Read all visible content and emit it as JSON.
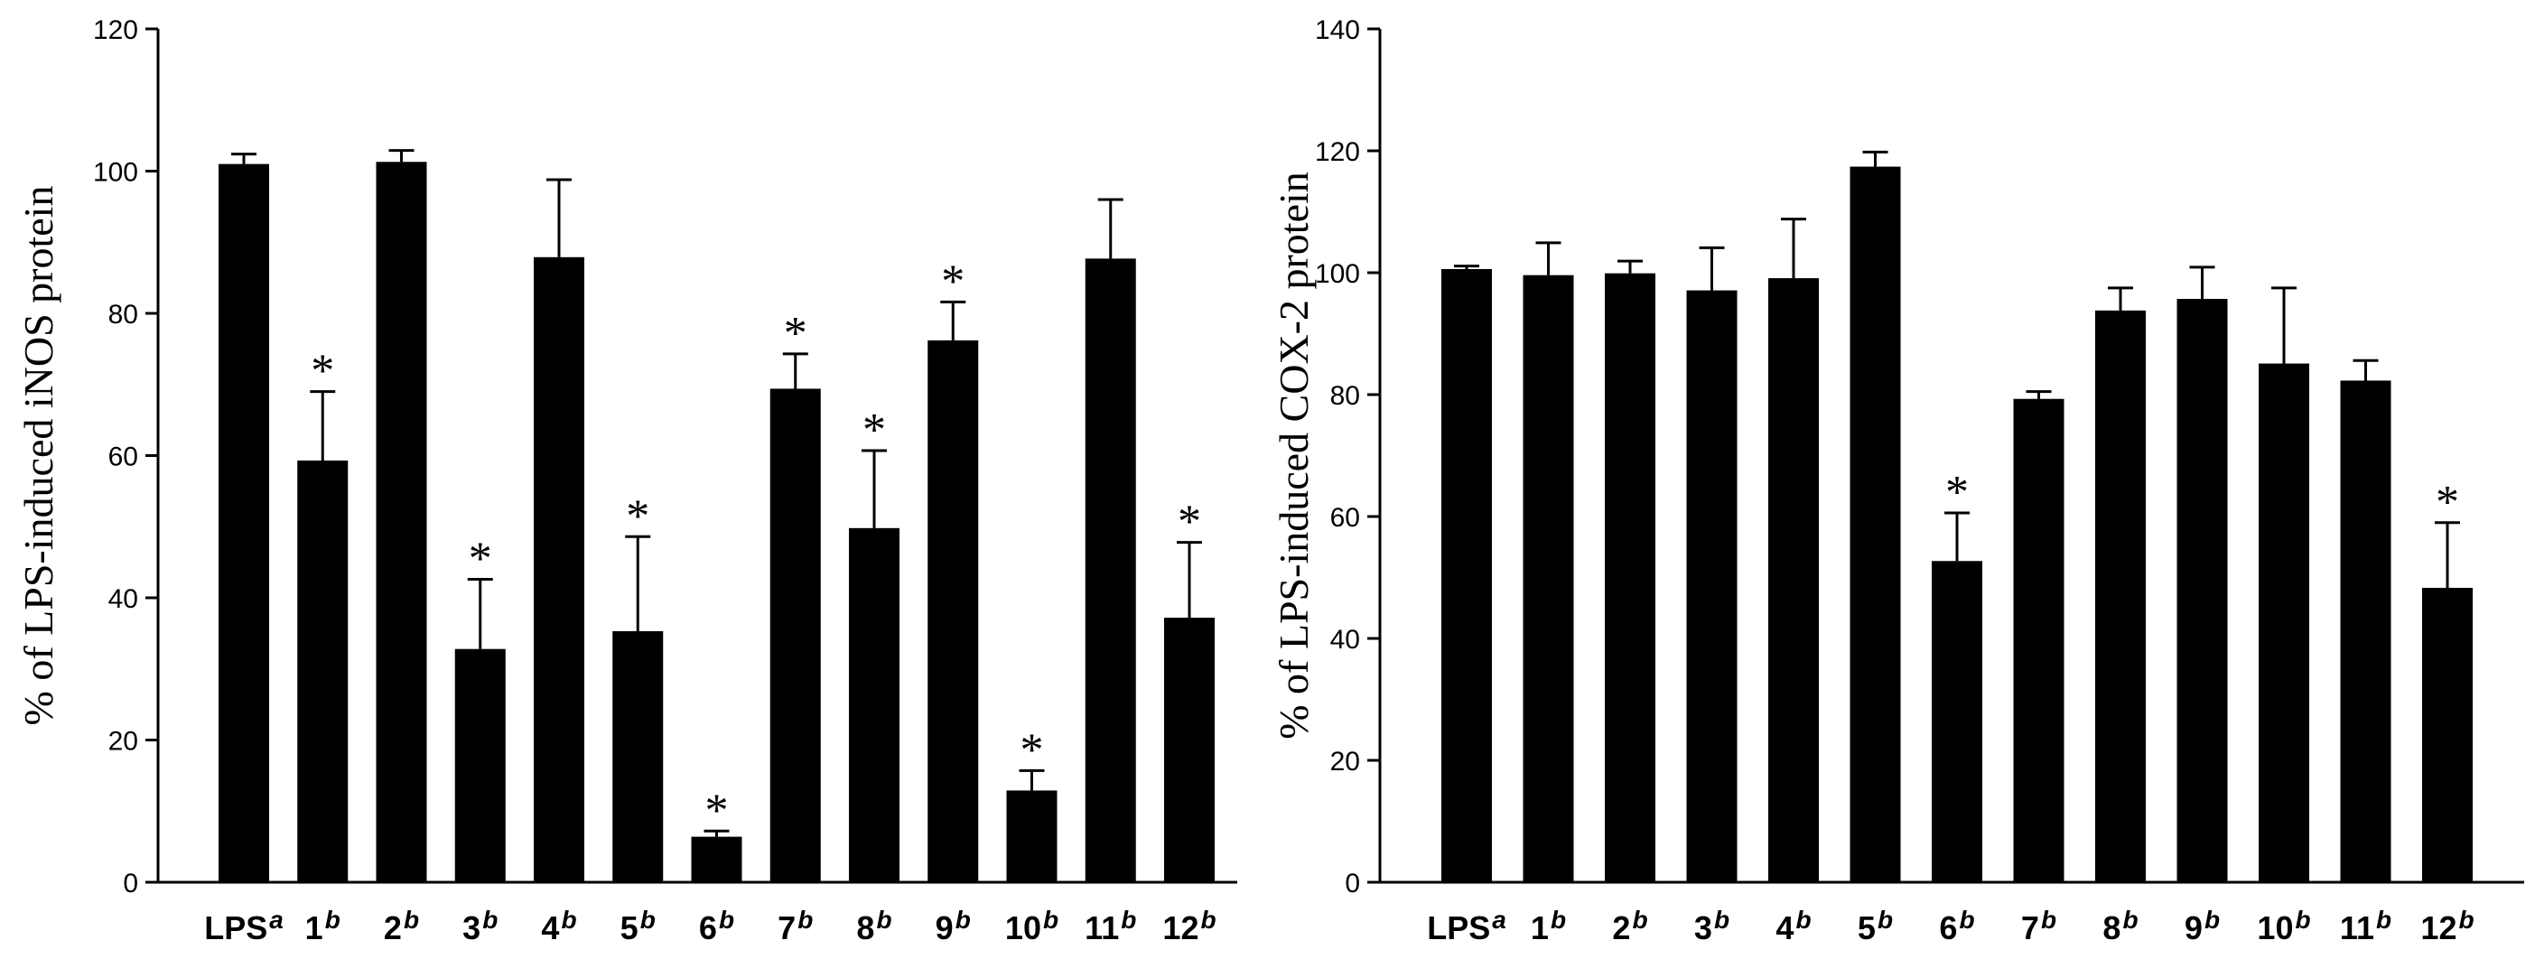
{
  "chart_data": [
    {
      "type": "bar",
      "title": "",
      "ylabel": "% of LPS-induced iNOS protein",
      "xlabel": "",
      "ylim": [
        0,
        120
      ],
      "yticks": [
        0,
        20,
        40,
        60,
        80,
        100,
        120
      ],
      "ytick_labels": [
        "0",
        "20",
        "40",
        "60",
        "80",
        "100",
        "120"
      ],
      "categories": [
        {
          "label": "LPS",
          "sup": "a"
        },
        {
          "label": "1",
          "sup": "b"
        },
        {
          "label": "2",
          "sup": "b"
        },
        {
          "label": "3",
          "sup": "b"
        },
        {
          "label": "4",
          "sup": "b"
        },
        {
          "label": "5",
          "sup": "b"
        },
        {
          "label": "6",
          "sup": "b"
        },
        {
          "label": "7",
          "sup": "b"
        },
        {
          "label": "8",
          "sup": "b"
        },
        {
          "label": "9",
          "sup": "b"
        },
        {
          "label": "10",
          "sup": "b"
        },
        {
          "label": "11",
          "sup": "b"
        },
        {
          "label": "12",
          "sup": "b"
        }
      ],
      "values": [
        101,
        59.3,
        101.3,
        32.8,
        87.9,
        35.3,
        6.4,
        69.4,
        49.8,
        76.2,
        12.9,
        87.7,
        37.2
      ],
      "errors": [
        1.4,
        9.7,
        1.6,
        9.8,
        10.9,
        13.3,
        0.8,
        4.9,
        10.9,
        5.4,
        2.8,
        8.3,
        10.6
      ],
      "significance_marker": "*",
      "significant": [
        false,
        true,
        false,
        true,
        false,
        true,
        true,
        true,
        true,
        true,
        true,
        false,
        true
      ],
      "bar_color": "#000000"
    },
    {
      "type": "bar",
      "title": "",
      "ylabel": "% of LPS-induced COX-2 protein",
      "xlabel": "",
      "ylim": [
        0,
        140
      ],
      "yticks": [
        0,
        20,
        40,
        60,
        80,
        100,
        120,
        140
      ],
      "ytick_labels": [
        "0",
        "20",
        "40",
        "60",
        "80",
        "100",
        "120",
        "140"
      ],
      "categories": [
        {
          "label": "LPS",
          "sup": "a"
        },
        {
          "label": "1",
          "sup": "b"
        },
        {
          "label": "2",
          "sup": "b"
        },
        {
          "label": "3",
          "sup": "b"
        },
        {
          "label": "4",
          "sup": "b"
        },
        {
          "label": "5",
          "sup": "b"
        },
        {
          "label": "6",
          "sup": "b"
        },
        {
          "label": "7",
          "sup": "b"
        },
        {
          "label": "8",
          "sup": "b"
        },
        {
          "label": "9",
          "sup": "b"
        },
        {
          "label": "10",
          "sup": "b"
        },
        {
          "label": "11",
          "sup": "b"
        },
        {
          "label": "12",
          "sup": "b"
        }
      ],
      "values": [
        100.6,
        99.6,
        99.9,
        97.1,
        99.1,
        117.4,
        52.7,
        79.3,
        93.8,
        95.7,
        85.1,
        82.3,
        48.3
      ],
      "errors": [
        0.5,
        5.3,
        2.0,
        7.0,
        9.7,
        2.4,
        7.9,
        1.2,
        3.7,
        5.2,
        12.4,
        3.3,
        10.7
      ],
      "significance_marker": "*",
      "significant": [
        false,
        false,
        false,
        false,
        false,
        false,
        true,
        false,
        false,
        false,
        false,
        false,
        true
      ],
      "bar_color": "#000000"
    }
  ]
}
